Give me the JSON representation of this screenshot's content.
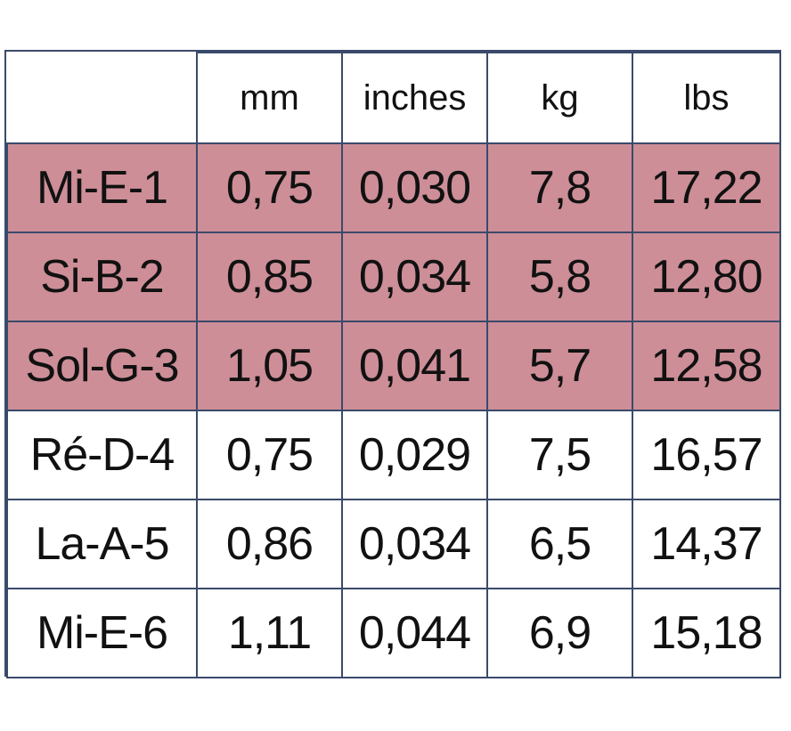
{
  "table": {
    "headers": [
      "",
      "mm",
      "inches",
      "kg",
      "lbs"
    ],
    "rows": [
      {
        "name": "Mi-E-1",
        "mm": "0,75",
        "inches": "0,030",
        "kg": "7,8",
        "lbs": "17,22",
        "highlighted": true
      },
      {
        "name": "Si-B-2",
        "mm": "0,85",
        "inches": "0,034",
        "kg": "5,8",
        "lbs": "12,80",
        "highlighted": true
      },
      {
        "name": "Sol-G-3",
        "mm": "1,05",
        "inches": "0,041",
        "kg": "5,7",
        "lbs": "12,58",
        "highlighted": true
      },
      {
        "name": "Ré-D-4",
        "mm": "0,75",
        "inches": "0,029",
        "kg": "7,5",
        "lbs": "16,57",
        "highlighted": false
      },
      {
        "name": "La-A-5",
        "mm": "0,86",
        "inches": "0,034",
        "kg": "6,5",
        "lbs": "14,37",
        "highlighted": false
      },
      {
        "name": "Mi-E-6",
        "mm": "1,11",
        "inches": "0,044",
        "kg": "6,9",
        "lbs": "15,18",
        "highlighted": false
      }
    ]
  },
  "colors": {
    "highlight": "#cd8e97",
    "border": "#3a4a6a",
    "text": "#111111"
  }
}
